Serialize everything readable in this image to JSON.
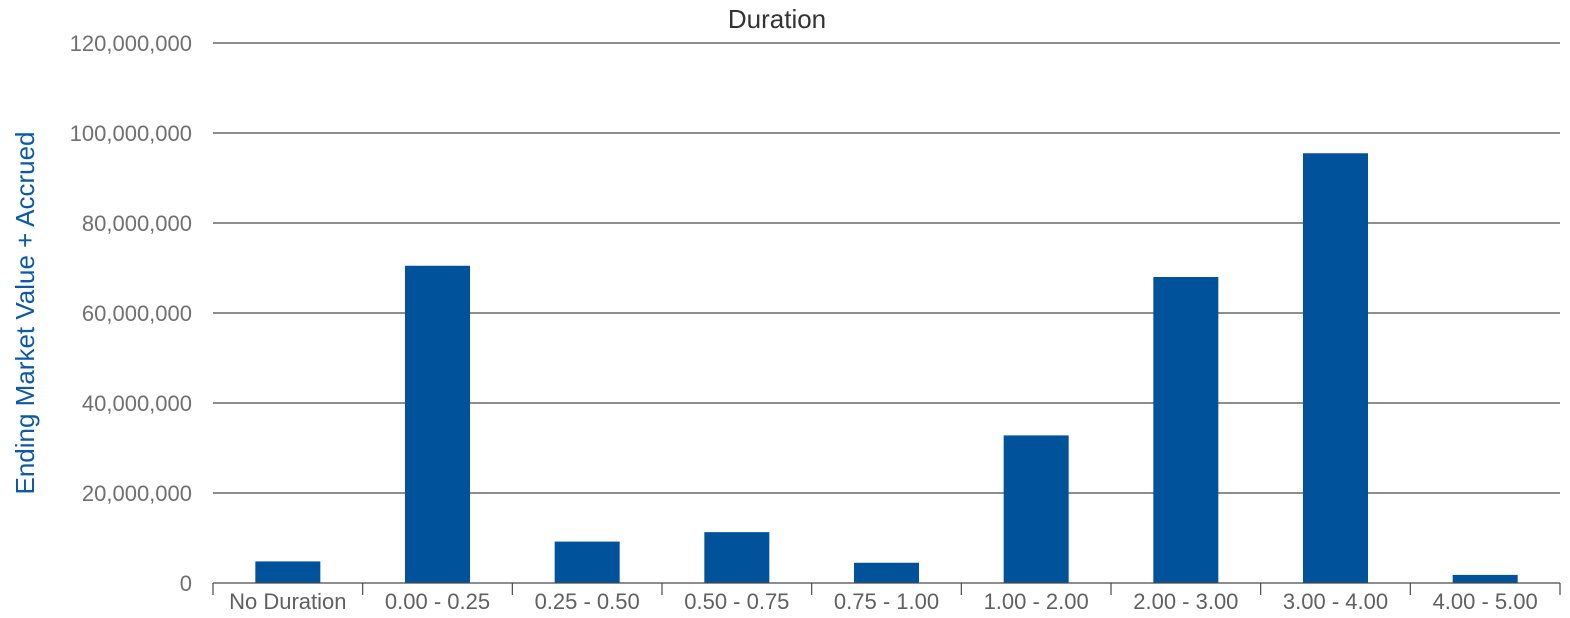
{
  "chart_data": {
    "type": "bar",
    "title": "Duration",
    "xlabel": "",
    "ylabel": "Ending Market Value + Accrued",
    "ylim": [
      0,
      120000000
    ],
    "yticks": [
      0,
      20000000,
      40000000,
      60000000,
      80000000,
      100000000,
      120000000
    ],
    "ytick_labels": [
      "0",
      "20,000,000",
      "40,000,000",
      "60,000,000",
      "80,000,000",
      "100,000,000",
      "120,000,000"
    ],
    "categories": [
      "No Duration",
      "0.00 - 0.25",
      "0.25 - 0.50",
      "0.50 - 0.75",
      "0.75 - 1.00",
      "1.00 - 2.00",
      "2.00 - 3.00",
      "3.00 - 4.00",
      "4.00 - 5.00"
    ],
    "values": [
      4800000,
      70500000,
      9200000,
      11300000,
      4500000,
      32800000,
      68000000,
      95500000,
      1800000
    ],
    "bar_color": "#00529b",
    "grid": true,
    "legend": "none"
  }
}
